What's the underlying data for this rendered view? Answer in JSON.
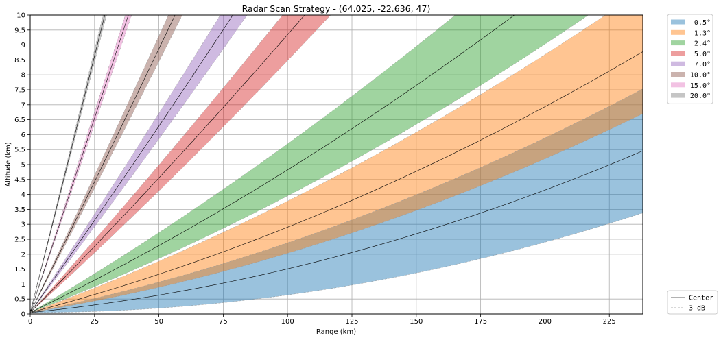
{
  "chart_data": {
    "type": "area",
    "title": "Radar Scan Strategy - (64.025, -22.636, 47)",
    "xlabel": "Range (km)",
    "ylabel": "Altitude (km)",
    "xlim": [
      0,
      238
    ],
    "ylim": [
      0,
      10
    ],
    "x_ticks": [
      "0",
      "25",
      "50",
      "75",
      "100",
      "125",
      "150",
      "175",
      "200",
      "225"
    ],
    "y_ticks": [
      "0",
      "0.5",
      "1",
      "1.5",
      "2",
      "2.5",
      "3",
      "3.5",
      "4",
      "4.5",
      "5",
      "5.5",
      "6",
      "6.5",
      "7",
      "7.5",
      "8",
      "8.5",
      "9",
      "9.5",
      "10"
    ],
    "grid": true,
    "beamwidth_deg": 1.0,
    "radar_altitude_m": 47,
    "series": [
      {
        "name": "0.5°",
        "elevation": 0.5,
        "color": "#1f77b4"
      },
      {
        "name": "1.3°",
        "elevation": 1.3,
        "color": "#ff7f0e"
      },
      {
        "name": "2.4°",
        "elevation": 2.4,
        "color": "#2ca02c"
      },
      {
        "name": "5.0°",
        "elevation": 5.0,
        "color": "#d62728"
      },
      {
        "name": "7.0°",
        "elevation": 7.0,
        "color": "#9467bd"
      },
      {
        "name": "10.0°",
        "elevation": 10.0,
        "color": "#8c564b"
      },
      {
        "name": "15.0°",
        "elevation": 15.0,
        "color": "#e377c2"
      },
      {
        "name": "20.0°",
        "elevation": 20.0,
        "color": "#7f7f7f"
      }
    ],
    "legend_main_position": "upper right, outside",
    "legend_lines": [
      {
        "name": "Center",
        "style": "solid"
      },
      {
        "name": "3 dB",
        "style": "dashed"
      }
    ],
    "legend_lines_position": "lower right, outside"
  }
}
